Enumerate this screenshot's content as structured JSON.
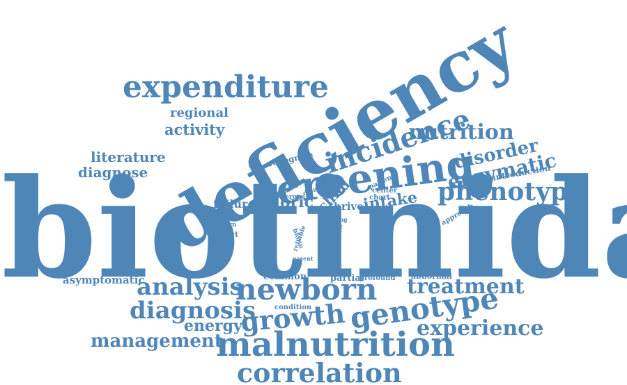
{
  "colors": {
    "word": "#4f86b8",
    "background": "#ffffff"
  },
  "words": {
    "biotinidase": "biotinidase",
    "deficiency": "deficiency",
    "screening": "screening",
    "incidence": "incidence",
    "expenditure": "expenditure",
    "newborn": "newborn",
    "malnutrition": "malnutrition",
    "genotype": "genotype",
    "growth": "growth",
    "phenotype": "phenotype",
    "nutrition": "nutrition",
    "disorder": "disorder",
    "enzymatic": "enzymatic",
    "treatment": "treatment",
    "analysis": "analysis",
    "diagnosis": "diagnosis",
    "correlation": "correlation",
    "experience": "experience",
    "management": "management",
    "energy": "energy",
    "regional": "regional",
    "activity": "activity",
    "literature": "literature",
    "diagnose": "diagnose",
    "recognize": "recognize",
    "caloric": "caloric",
    "failure": "failure",
    "child": "child",
    "thrive": "thrive",
    "intake": "intake",
    "introduction": "introduction",
    "approach": "approach",
    "patient": "patient",
    "center": "center",
    "chart": "chart",
    "verona": "verona",
    "disease": "disease",
    "pattern": "pattern",
    "defect": "defect",
    "biotin": "biotin",
    "reliable": "reliable",
    "essential": "essential",
    "sibling": "sibling",
    "treat": "treat",
    "study": "study",
    "lack": "lack",
    "parent": "parent",
    "common": "common",
    "partial": "partial",
    "profound": "profound",
    "abnormal": "abnormal",
    "asymptomatic": "asymptomatic",
    "condition": "condition"
  }
}
